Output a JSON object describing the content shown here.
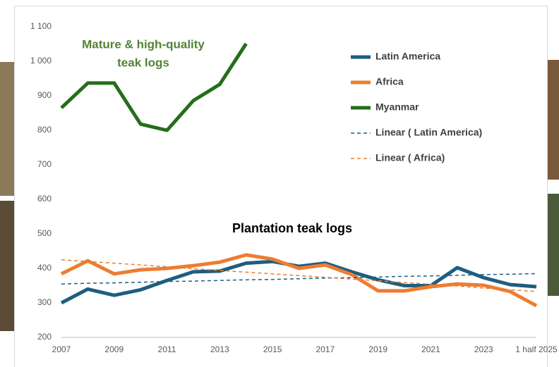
{
  "chart_data": {
    "type": "line",
    "annotations": [
      [
        "Mature & high-quality",
        "teak logs"
      ],
      [
        "Plantation teak logs"
      ]
    ],
    "categories": [
      "2007",
      null,
      "2009",
      null,
      "2011",
      null,
      "2013",
      null,
      "2015",
      null,
      "2017",
      null,
      "2019",
      null,
      "2021",
      null,
      "2023",
      null,
      "1 half 2025"
    ],
    "series": [
      {
        "name": "Latin America",
        "color": "#1d5e80",
        "dashed": false,
        "values": [
          300,
          340,
          322,
          338,
          365,
          390,
          392,
          415,
          420,
          406,
          415,
          390,
          367,
          350,
          350,
          402,
          373,
          353,
          347
        ]
      },
      {
        "name": "Africa",
        "color": "#ed7d31",
        "dashed": false,
        "values": [
          384,
          422,
          384,
          396,
          400,
          408,
          418,
          439,
          427,
          400,
          410,
          382,
          335,
          335,
          347,
          355,
          351,
          333,
          292
        ]
      },
      {
        "name": "Myanmar",
        "color": "#256d1b",
        "dashed": false,
        "values": [
          865,
          937,
          937,
          818,
          800,
          886,
          933,
          1051,
          null,
          null,
          null,
          null,
          null,
          null,
          null,
          null,
          null,
          null,
          null
        ]
      },
      {
        "name": "Linear ( Latin America)",
        "color": "#1d5e80",
        "dashed": true,
        "values": [
          355,
          357,
          358,
          360,
          362,
          363,
          365,
          367,
          368,
          370,
          372,
          373,
          375,
          377,
          378,
          380,
          382,
          383,
          385
        ]
      },
      {
        "name": "Linear ( Africa)",
        "color": "#ed7d31",
        "dashed": true,
        "values": [
          425,
          420,
          415,
          410,
          405,
          399,
          394,
          389,
          384,
          379,
          374,
          369,
          364,
          359,
          354,
          349,
          343,
          338,
          333
        ]
      }
    ],
    "ylim": [
      200,
      1100
    ],
    "yticks": [
      200,
      300,
      400,
      500,
      600,
      700,
      800,
      900,
      {
        "value": 1000,
        "label": "1 000"
      },
      {
        "value": 1100,
        "label": "1 100"
      }
    ],
    "grid": false
  }
}
